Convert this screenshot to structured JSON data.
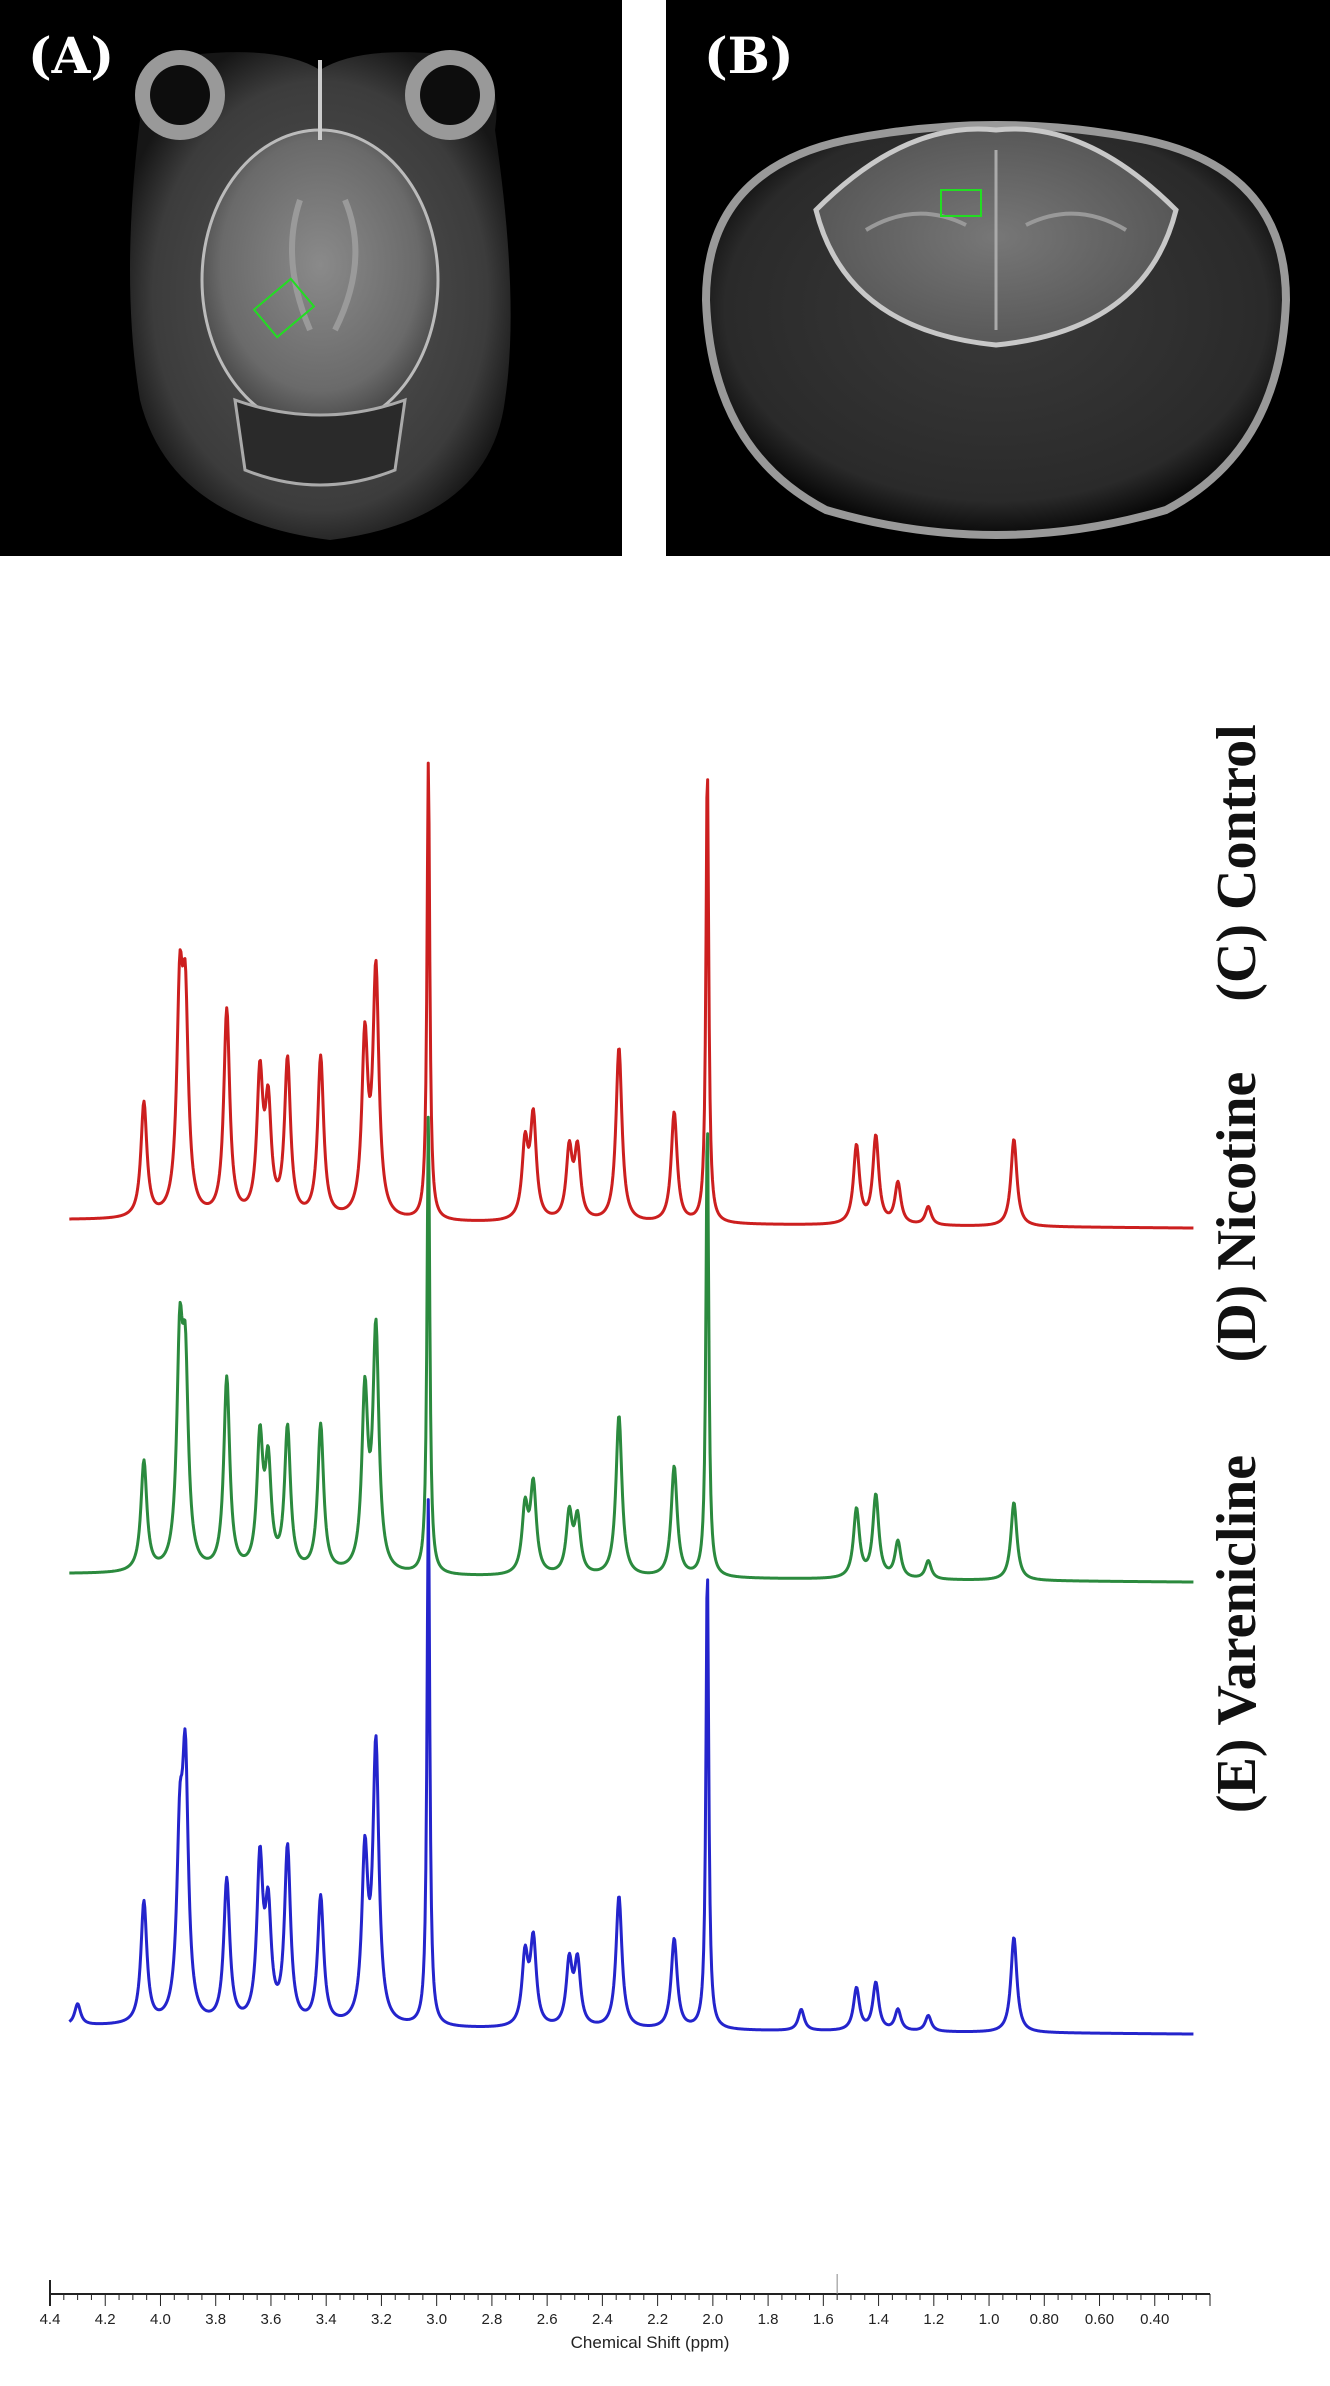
{
  "panels": {
    "a": {
      "label": "(A)"
    },
    "b": {
      "label": "(B)"
    }
  },
  "chart_data": {
    "type": "line",
    "xlabel": "Chemical Shift (ppm)",
    "ylabel": "",
    "x_reversed": true,
    "xlim": [
      4.4,
      0.2
    ],
    "x_ticks": [
      "4.4",
      "4.2",
      "4.0",
      "3.8",
      "3.6",
      "3.4",
      "3.2",
      "3.0",
      "2.8",
      "2.6",
      "2.4",
      "2.2",
      "2.0",
      "1.8",
      "1.6",
      "1.4",
      "1.2",
      "1.0",
      "0.80",
      "0.60",
      "0.40"
    ],
    "y_units": "relative intensity (arbitrary)",
    "series": [
      {
        "name": "(C) Control",
        "color": "#cc1f1f",
        "peaks": [
          {
            "ppm": 4.06,
            "height": 0.25
          },
          {
            "ppm": 3.93,
            "height": 0.45
          },
          {
            "ppm": 3.91,
            "height": 0.42
          },
          {
            "ppm": 3.76,
            "height": 0.45
          },
          {
            "ppm": 3.64,
            "height": 0.3
          },
          {
            "ppm": 3.61,
            "height": 0.23
          },
          {
            "ppm": 3.54,
            "height": 0.34
          },
          {
            "ppm": 3.42,
            "height": 0.35
          },
          {
            "ppm": 3.26,
            "height": 0.38
          },
          {
            "ppm": 3.22,
            "height": 0.53
          },
          {
            "ppm": 3.03,
            "height": 1.0
          },
          {
            "ppm": 2.68,
            "height": 0.16
          },
          {
            "ppm": 2.65,
            "height": 0.22
          },
          {
            "ppm": 2.52,
            "height": 0.15
          },
          {
            "ppm": 2.49,
            "height": 0.15
          },
          {
            "ppm": 2.34,
            "height": 0.38
          },
          {
            "ppm": 2.14,
            "height": 0.24
          },
          {
            "ppm": 2.02,
            "height": 1.0
          },
          {
            "ppm": 1.48,
            "height": 0.17
          },
          {
            "ppm": 1.41,
            "height": 0.19
          },
          {
            "ppm": 1.33,
            "height": 0.09
          },
          {
            "ppm": 1.22,
            "height": 0.04
          },
          {
            "ppm": 0.91,
            "height": 0.19
          }
        ]
      },
      {
        "name": "(D) Nicotine",
        "color": "#2b8a3e",
        "peaks": [
          {
            "ppm": 4.06,
            "height": 0.24
          },
          {
            "ppm": 3.93,
            "height": 0.46
          },
          {
            "ppm": 3.91,
            "height": 0.4
          },
          {
            "ppm": 3.76,
            "height": 0.42
          },
          {
            "ppm": 3.64,
            "height": 0.28
          },
          {
            "ppm": 3.61,
            "height": 0.22
          },
          {
            "ppm": 3.54,
            "height": 0.31
          },
          {
            "ppm": 3.42,
            "height": 0.32
          },
          {
            "ppm": 3.26,
            "height": 0.38
          },
          {
            "ppm": 3.22,
            "height": 0.52
          },
          {
            "ppm": 3.03,
            "height": 1.0
          },
          {
            "ppm": 2.68,
            "height": 0.14
          },
          {
            "ppm": 2.65,
            "height": 0.19
          },
          {
            "ppm": 2.52,
            "height": 0.13
          },
          {
            "ppm": 2.49,
            "height": 0.12
          },
          {
            "ppm": 2.34,
            "height": 0.35
          },
          {
            "ppm": 2.14,
            "height": 0.24
          },
          {
            "ppm": 2.02,
            "height": 1.0
          },
          {
            "ppm": 1.48,
            "height": 0.15
          },
          {
            "ppm": 1.41,
            "height": 0.18
          },
          {
            "ppm": 1.33,
            "height": 0.08
          },
          {
            "ppm": 1.22,
            "height": 0.04
          },
          {
            "ppm": 0.91,
            "height": 0.17
          }
        ]
      },
      {
        "name": "(E) Varenicline",
        "color": "#2424cc",
        "peaks": [
          {
            "ppm": 4.3,
            "height": 0.04
          },
          {
            "ppm": 4.06,
            "height": 0.23
          },
          {
            "ppm": 3.93,
            "height": 0.31
          },
          {
            "ppm": 3.91,
            "height": 0.46
          },
          {
            "ppm": 3.76,
            "height": 0.27
          },
          {
            "ppm": 3.64,
            "height": 0.3
          },
          {
            "ppm": 3.61,
            "height": 0.2
          },
          {
            "ppm": 3.54,
            "height": 0.33
          },
          {
            "ppm": 3.42,
            "height": 0.24
          },
          {
            "ppm": 3.26,
            "height": 0.31
          },
          {
            "ppm": 3.22,
            "height": 0.52
          },
          {
            "ppm": 3.03,
            "height": 1.0
          },
          {
            "ppm": 2.68,
            "height": 0.13
          },
          {
            "ppm": 2.65,
            "height": 0.16
          },
          {
            "ppm": 2.52,
            "height": 0.12
          },
          {
            "ppm": 2.49,
            "height": 0.12
          },
          {
            "ppm": 2.34,
            "height": 0.25
          },
          {
            "ppm": 2.14,
            "height": 0.17
          },
          {
            "ppm": 2.02,
            "height": 0.88
          },
          {
            "ppm": 1.68,
            "height": 0.04
          },
          {
            "ppm": 1.48,
            "height": 0.08
          },
          {
            "ppm": 1.41,
            "height": 0.09
          },
          {
            "ppm": 1.33,
            "height": 0.04
          },
          {
            "ppm": 1.22,
            "height": 0.03
          },
          {
            "ppm": 0.91,
            "height": 0.18
          }
        ]
      }
    ]
  }
}
